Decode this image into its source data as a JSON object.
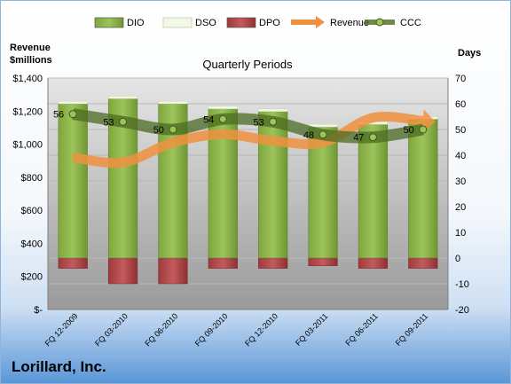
{
  "company": "Lorillard, Inc.",
  "chart_data": {
    "type": "bar",
    "title": "Quarterly Periods",
    "categories": [
      "FQ 12-2009",
      "FQ 03-2010",
      "FQ 06-2010",
      "FQ 09-2010",
      "FQ 12-2010",
      "FQ 03-2011",
      "FQ 06-2011",
      "FQ 09-2011"
    ],
    "left_axis": {
      "label_line1": "Revenue",
      "label_line2": "$millions",
      "ylim": [
        0,
        1400
      ],
      "ticks": [
        0,
        200,
        400,
        600,
        800,
        1000,
        1200,
        1400
      ],
      "tick_labels": [
        "$-",
        "$200",
        "$400",
        "$600",
        "$800",
        "$1,000",
        "$1,200",
        "$1,400"
      ]
    },
    "right_axis": {
      "label": "Days",
      "ylim": [
        -20,
        70
      ],
      "ticks": [
        -20,
        -10,
        0,
        10,
        20,
        30,
        40,
        50,
        60,
        70
      ],
      "tick_labels": [
        "-20",
        "-10",
        "0",
        "10",
        "20",
        "30",
        "40",
        "50",
        "60",
        "70"
      ]
    },
    "grid": true,
    "legend_position": "top",
    "series": [
      {
        "name": "DIO",
        "kind": "stacked-bar",
        "axis": "right",
        "color": "#8fb84a",
        "values": [
          60,
          62,
          60,
          58,
          57,
          51,
          52,
          54
        ]
      },
      {
        "name": "DSO",
        "kind": "stacked-bar",
        "axis": "right",
        "color": "#f2f7e6",
        "values": [
          1,
          1,
          1,
          1,
          1,
          1,
          1,
          1
        ]
      },
      {
        "name": "DPO",
        "kind": "negative-bar",
        "axis": "right",
        "color": "#b5484a",
        "values": [
          -4,
          -10,
          -10,
          -4,
          -4,
          -3,
          -4,
          -4
        ]
      },
      {
        "name": "Revenue",
        "kind": "line",
        "axis": "left",
        "color": "#f0913f",
        "values": [
          920,
          890,
          1010,
          1060,
          1020,
          1010,
          1160,
          1140
        ]
      },
      {
        "name": "CCC",
        "kind": "line",
        "axis": "right",
        "color": "#4b6b22",
        "values": [
          56,
          53,
          50,
          54,
          53,
          48,
          47,
          50
        ],
        "labels": [
          "56",
          "53",
          "50",
          "54",
          "53",
          "48",
          "47",
          "50"
        ]
      }
    ]
  }
}
